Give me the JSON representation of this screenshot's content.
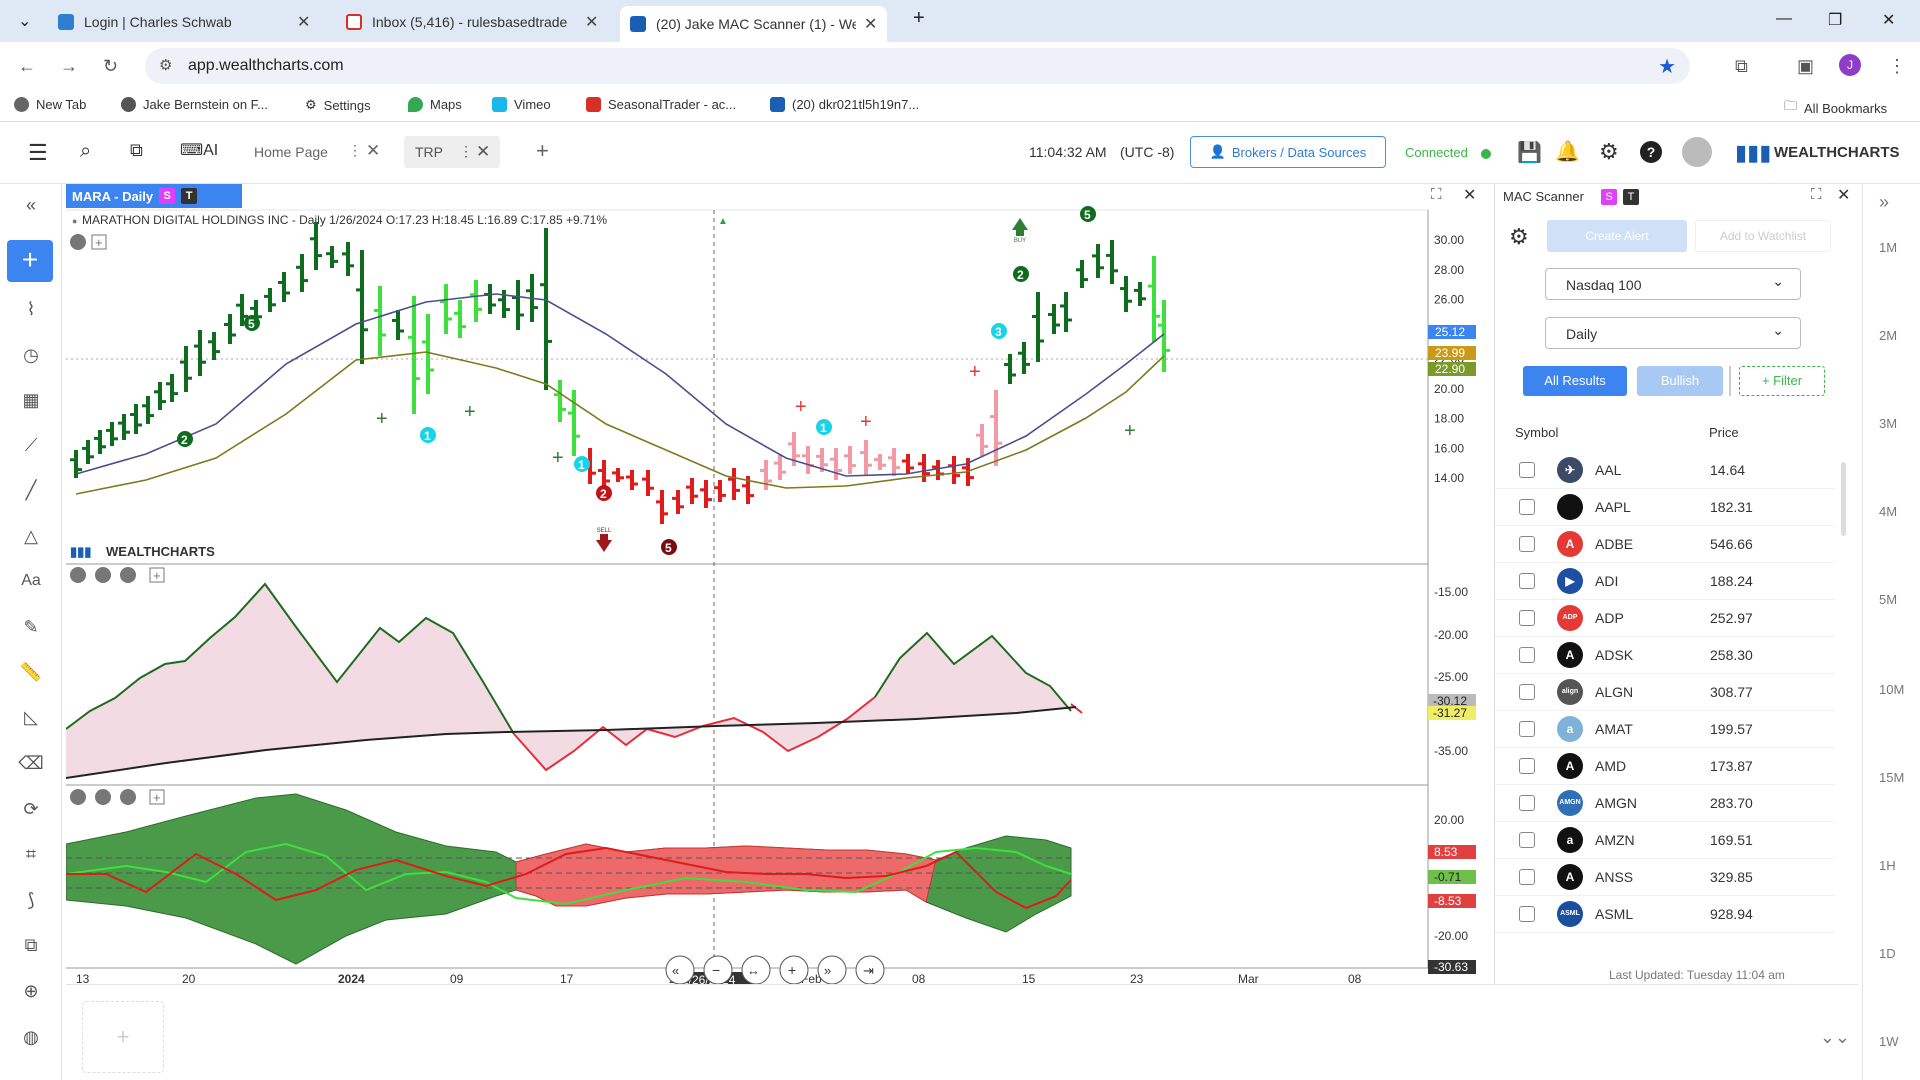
{
  "browser": {
    "tabs": [
      {
        "title": "Login | Charles Schwab",
        "color": "#2f7fd0"
      },
      {
        "title": "Inbox (5,416) - rulesbasedtrade",
        "color": "#d93025"
      },
      {
        "title": "(20) Jake MAC Scanner (1) - We",
        "color": "#1a5fb4"
      }
    ],
    "url": "app.wealthcharts.com",
    "bookmarks": [
      "New Tab",
      "Jake Bernstein on F...",
      "Settings",
      "Maps",
      "Vimeo",
      "SeasonalTrader - ac...",
      "(20) dkr021tl5h19n7...",
      "All Bookmarks"
    ]
  },
  "app": {
    "nav_tabs": [
      "Home Page",
      "TRP"
    ],
    "time": "11:04:32 AM",
    "timezone": "(UTC -8)",
    "brokers_label": "Brokers / Data Sources",
    "connected_label": "Connected",
    "brand": "WEALTHCHARTS"
  },
  "chart": {
    "tab_label": "MARA - Daily",
    "badge_s": "S",
    "badge_t": "T",
    "header": "MARATHON DIGITAL HOLDINGS INC - Daily 1/26/2024 O:17.23 H:18.45 L:16.89 C:17.85 +9.71%",
    "watermark": "WEALTHCHARTS",
    "price_ticks": [
      "30.00",
      "28.00",
      "26.00",
      "24.00",
      "22.00",
      "20.00",
      "18.00",
      "16.00",
      "14.00"
    ],
    "price_badges": [
      "25.12",
      "23.99",
      "22.90"
    ],
    "osc1_ticks": [
      "-15.00",
      "-20.00",
      "-25.00",
      "-35.00"
    ],
    "osc1_badges": [
      "-30.12",
      "-31.27"
    ],
    "osc2_ticks": [
      "20.00",
      "-20.00"
    ],
    "osc2_badges": [
      "8.53",
      "-0.71",
      "-8.53",
      "-30.63"
    ],
    "date_ticks": [
      "13",
      "20",
      "2024",
      "09",
      "17",
      "24",
      "Feb",
      "08",
      "15",
      "23",
      "Mar",
      "08"
    ],
    "crosshair_date": "1/26/2024",
    "buy_label": "BUY",
    "sell_label": "SELL"
  },
  "chart_data": {
    "type": "bar",
    "title": "MARATHON DIGITAL HOLDINGS INC - Daily",
    "ylim": [
      14,
      30
    ],
    "ma_fast_last": 25.12,
    "ma_slow_last": 23.99
  },
  "scanner": {
    "title": "MAC Scanner",
    "create_alert": "Create Alert",
    "add_watchlist": "Add to Watchlist",
    "index": "Nasdaq 100",
    "timeframe": "Daily",
    "all_results": "All Results",
    "bullish": "Bullish",
    "filter": "+ Filter",
    "col_symbol": "Symbol",
    "col_price": "Price",
    "rows": [
      {
        "symbol": "AAL",
        "price": "14.64",
        "color": "#3b4a66",
        "mark": "✈"
      },
      {
        "symbol": "AAPL",
        "price": "182.31",
        "color": "#111111",
        "mark": ""
      },
      {
        "symbol": "ADBE",
        "price": "546.66",
        "color": "#e53935",
        "mark": "A"
      },
      {
        "symbol": "ADI",
        "price": "188.24",
        "color": "#1e4fa3",
        "mark": "▶"
      },
      {
        "symbol": "ADP",
        "price": "252.97",
        "color": "#e53935",
        "mark": "ADP"
      },
      {
        "symbol": "ADSK",
        "price": "258.30",
        "color": "#111111",
        "mark": "A"
      },
      {
        "symbol": "ALGN",
        "price": "308.77",
        "color": "#555555",
        "mark": "align"
      },
      {
        "symbol": "AMAT",
        "price": "199.57",
        "color": "#7fb2d9",
        "mark": "a"
      },
      {
        "symbol": "AMD",
        "price": "173.87",
        "color": "#111111",
        "mark": "A"
      },
      {
        "symbol": "AMGN",
        "price": "283.70",
        "color": "#2e6fb7",
        "mark": "AMGN"
      },
      {
        "symbol": "AMZN",
        "price": "169.51",
        "color": "#111111",
        "mark": "a"
      },
      {
        "symbol": "ANSS",
        "price": "329.85",
        "color": "#111111",
        "mark": "A"
      },
      {
        "symbol": "ASML",
        "price": "928.94",
        "color": "#1a4fa0",
        "mark": "ASML"
      }
    ],
    "last_updated": "Last Updated: Tuesday 11:04 am"
  },
  "right_rail": [
    "1M",
    "2M",
    "3M",
    "4M",
    "5M",
    "10M",
    "15M",
    "1H",
    "1D",
    "1W"
  ]
}
